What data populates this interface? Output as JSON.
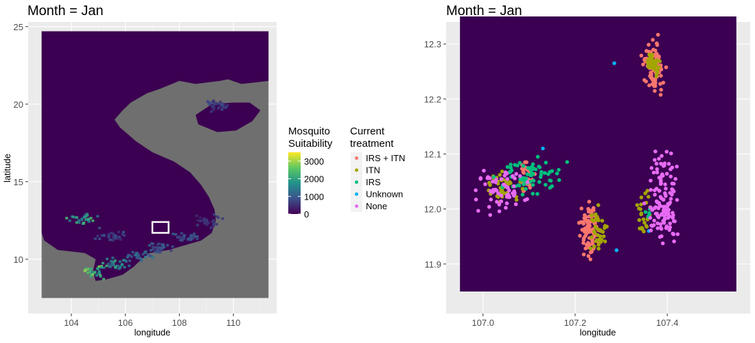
{
  "chart_data": [
    {
      "type": "heatmap",
      "title": "Month = Jan",
      "xlabel": "longitude",
      "ylabel": "latitude",
      "xlim": [
        102.4,
        111.6
      ],
      "ylim": [
        6.5,
        25.3
      ],
      "xticks": [
        104,
        106,
        108,
        110
      ],
      "yticks": [
        10,
        15,
        20,
        25
      ],
      "land_color": "#3b0051",
      "sea_color": "#6f6f6f",
      "highlight_box": {
        "lon": [
          107.0,
          107.6
        ],
        "lat": [
          11.7,
          12.4
        ],
        "color": "#ffffff"
      },
      "suitability_patches": [
        {
          "lon": 104.9,
          "lat": 9.3,
          "value": 2800
        },
        {
          "lon": 105.6,
          "lat": 9.8,
          "value": 2000
        },
        {
          "lon": 106.4,
          "lat": 10.3,
          "value": 1400
        },
        {
          "lon": 104.3,
          "lat": 12.7,
          "value": 2300
        },
        {
          "lon": 105.5,
          "lat": 11.6,
          "value": 900
        },
        {
          "lon": 108.3,
          "lat": 11.5,
          "value": 1000
        },
        {
          "lon": 109.0,
          "lat": 12.6,
          "value": 700
        },
        {
          "lon": 107.2,
          "lat": 10.8,
          "value": 1100
        },
        {
          "lon": 109.3,
          "lat": 20.0,
          "value": 800
        }
      ]
    },
    {
      "type": "scatter",
      "title": "Month = Jan",
      "xlabel": "longitude",
      "ylabel": "",
      "xlim": [
        106.92,
        107.58
      ],
      "ylim": [
        11.81,
        12.34
      ],
      "xticks": [
        107.0,
        107.2,
        107.4
      ],
      "yticks": [
        11.9,
        12.0,
        12.1,
        12.2,
        12.3
      ],
      "background": "#3b0051",
      "series": [
        {
          "name": "IRS + ITN",
          "color": "#f8766d",
          "clusters": [
            {
              "x": 107.37,
              "y": 12.26,
              "sx": 0.016,
              "sy": 0.03,
              "n": 90
            },
            {
              "x": 107.23,
              "y": 11.96,
              "sx": 0.012,
              "sy": 0.035,
              "n": 90
            },
            {
              "x": 107.09,
              "y": 12.06,
              "sx": 0.012,
              "sy": 0.02,
              "n": 30
            }
          ]
        },
        {
          "name": "ITN",
          "color": "#a3a500",
          "clusters": [
            {
              "x": 107.37,
              "y": 12.26,
              "sx": 0.01,
              "sy": 0.012,
              "n": 40
            },
            {
              "x": 107.25,
              "y": 11.96,
              "sx": 0.012,
              "sy": 0.03,
              "n": 40
            },
            {
              "x": 107.04,
              "y": 12.04,
              "sx": 0.025,
              "sy": 0.02,
              "n": 40
            },
            {
              "x": 107.35,
              "y": 11.99,
              "sx": 0.01,
              "sy": 0.03,
              "n": 25
            }
          ]
        },
        {
          "name": "IRS",
          "color": "#00bf7d",
          "clusters": [
            {
              "x": 107.1,
              "y": 12.06,
              "sx": 0.045,
              "sy": 0.02,
              "n": 70
            },
            {
              "x": 107.36,
              "y": 11.99,
              "sx": 0.005,
              "sy": 0.01,
              "n": 6
            }
          ]
        },
        {
          "name": "Unknown",
          "color": "#00b0f6",
          "clusters": [
            {
              "x": 107.13,
              "y": 12.11,
              "sx": 0.002,
              "sy": 0.002,
              "n": 1
            },
            {
              "x": 107.285,
              "y": 12.265,
              "sx": 0.002,
              "sy": 0.002,
              "n": 1
            },
            {
              "x": 107.29,
              "y": 11.925,
              "sx": 0.002,
              "sy": 0.002,
              "n": 1
            },
            {
              "x": 107.36,
              "y": 11.96,
              "sx": 0.002,
              "sy": 0.002,
              "n": 1
            }
          ]
        },
        {
          "name": "None",
          "color": "#e76bf3",
          "clusters": [
            {
              "x": 107.39,
              "y": 12.0,
              "sx": 0.02,
              "sy": 0.04,
              "n": 100
            },
            {
              "x": 107.04,
              "y": 12.04,
              "sx": 0.035,
              "sy": 0.025,
              "n": 60
            },
            {
              "x": 107.39,
              "y": 12.07,
              "sx": 0.02,
              "sy": 0.02,
              "n": 30
            }
          ]
        }
      ]
    }
  ],
  "legend_suitability": {
    "title_line1": "Mosquito",
    "title_line2": "Suitability",
    "ticks": [
      "3000",
      "2000",
      "1000",
      "0"
    ],
    "tick_values": [
      3000,
      2000,
      1000,
      0
    ],
    "range": [
      0,
      3500
    ],
    "colors": [
      "#fde725",
      "#5ec962",
      "#21918c",
      "#3b528b",
      "#440154"
    ]
  },
  "legend_treatment": {
    "title_line1": "Current",
    "title_line2": "treatment",
    "items": [
      {
        "label": "IRS + ITN",
        "color": "#f8766d"
      },
      {
        "label": "ITN",
        "color": "#a3a500"
      },
      {
        "label": "IRS",
        "color": "#00bf7d"
      },
      {
        "label": "Unknown",
        "color": "#00b0f6"
      },
      {
        "label": "None",
        "color": "#e76bf3"
      }
    ]
  }
}
